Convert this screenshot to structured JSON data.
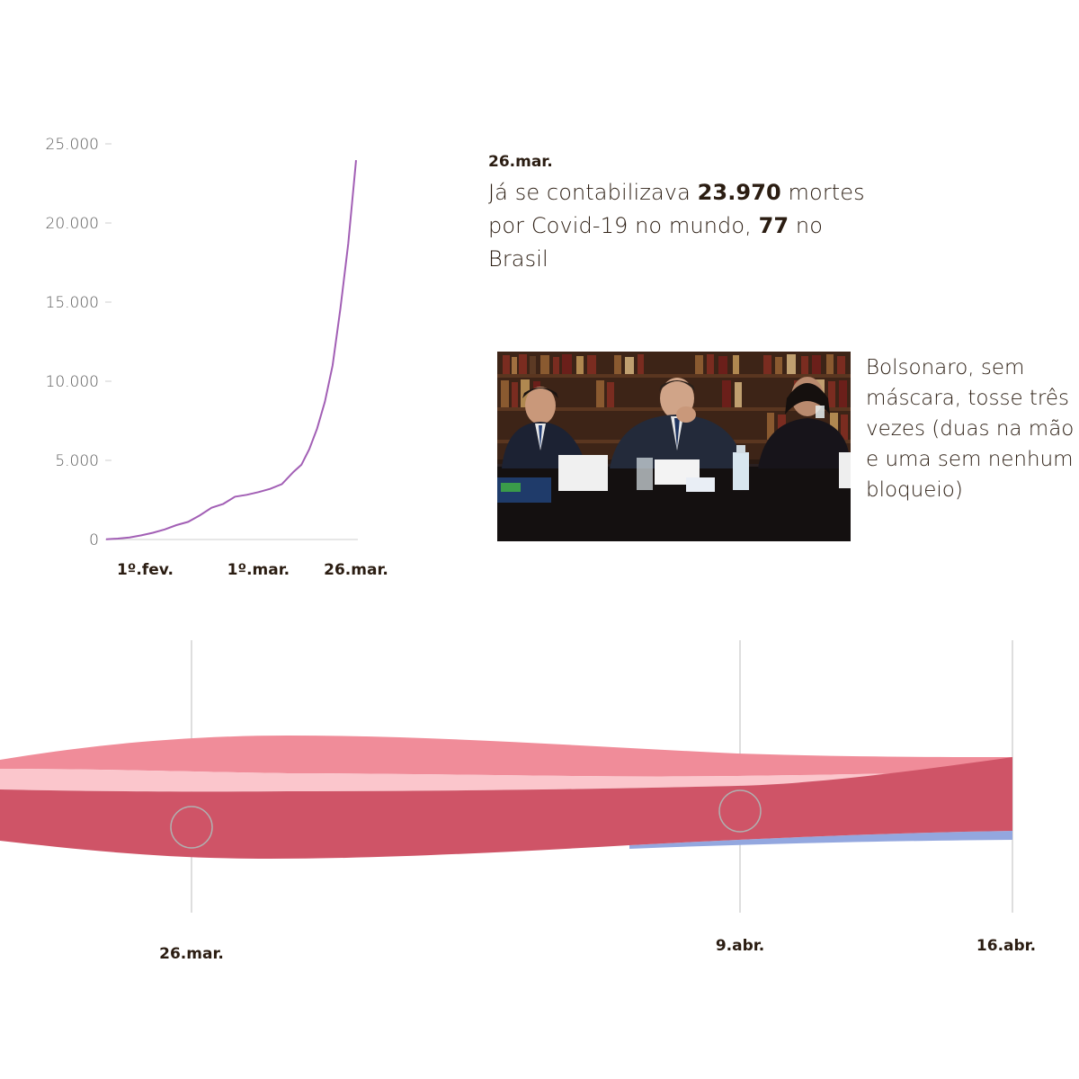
{
  "chart_data": [
    {
      "type": "line",
      "title": "",
      "xlabel": "",
      "ylabel": "",
      "ylim": [
        0,
        25000
      ],
      "yticks": [
        0,
        5000,
        10000,
        15000,
        20000,
        25000
      ],
      "ytick_labels": [
        "0",
        "5.000",
        "10.000",
        "15.000",
        "20.000",
        "25.000"
      ],
      "xtick_labels": [
        "1º.fev.",
        "1º.mar.",
        "26.mar."
      ],
      "xtick_dates": [
        "2020-02-01",
        "2020-03-01",
        "2020-03-26"
      ],
      "grid": false,
      "line_color": "#a25fb5",
      "series": [
        {
          "x": [
            "2020-01-22",
            "2020-01-25",
            "2020-01-28",
            "2020-01-31",
            "2020-02-03",
            "2020-02-06",
            "2020-02-09",
            "2020-02-12",
            "2020-02-15",
            "2020-02-18",
            "2020-02-21",
            "2020-02-24",
            "2020-02-27",
            "2020-03-01",
            "2020-03-04",
            "2020-03-07",
            "2020-03-10",
            "2020-03-12",
            "2020-03-14",
            "2020-03-16",
            "2020-03-18",
            "2020-03-20",
            "2020-03-22",
            "2020-03-24",
            "2020-03-26"
          ],
          "y": [
            17,
            56,
            132,
            259,
            425,
            636,
            908,
            1115,
            1526,
            2005,
            2250,
            2704,
            2825,
            2996,
            3200,
            3500,
            4280,
            4720,
            5700,
            7000,
            8700,
            11000,
            14600,
            18700,
            23970
          ]
        }
      ]
    },
    {
      "type": "area",
      "title": "",
      "xtick_labels": [
        "26.mar.",
        "9.abr.",
        "16.abr."
      ],
      "layers": [
        {
          "color": "#f08c99"
        },
        {
          "color": "#fbc6cc"
        },
        {
          "color": "#cf5467"
        },
        {
          "color": "#93a7df"
        }
      ]
    }
  ],
  "annotation": {
    "date": "26.mar.",
    "text_pre": "Já se contabilizava ",
    "world_deaths": "23.970",
    "text_mid": " mortes por Covid-19 no mundo, ",
    "brazil_deaths": "77",
    "text_post": " no Brasil"
  },
  "photo_caption": "Bolsonaro, sem máscara, tosse três vezes (duas na mão e uma sem nenhum bloqueio)"
}
